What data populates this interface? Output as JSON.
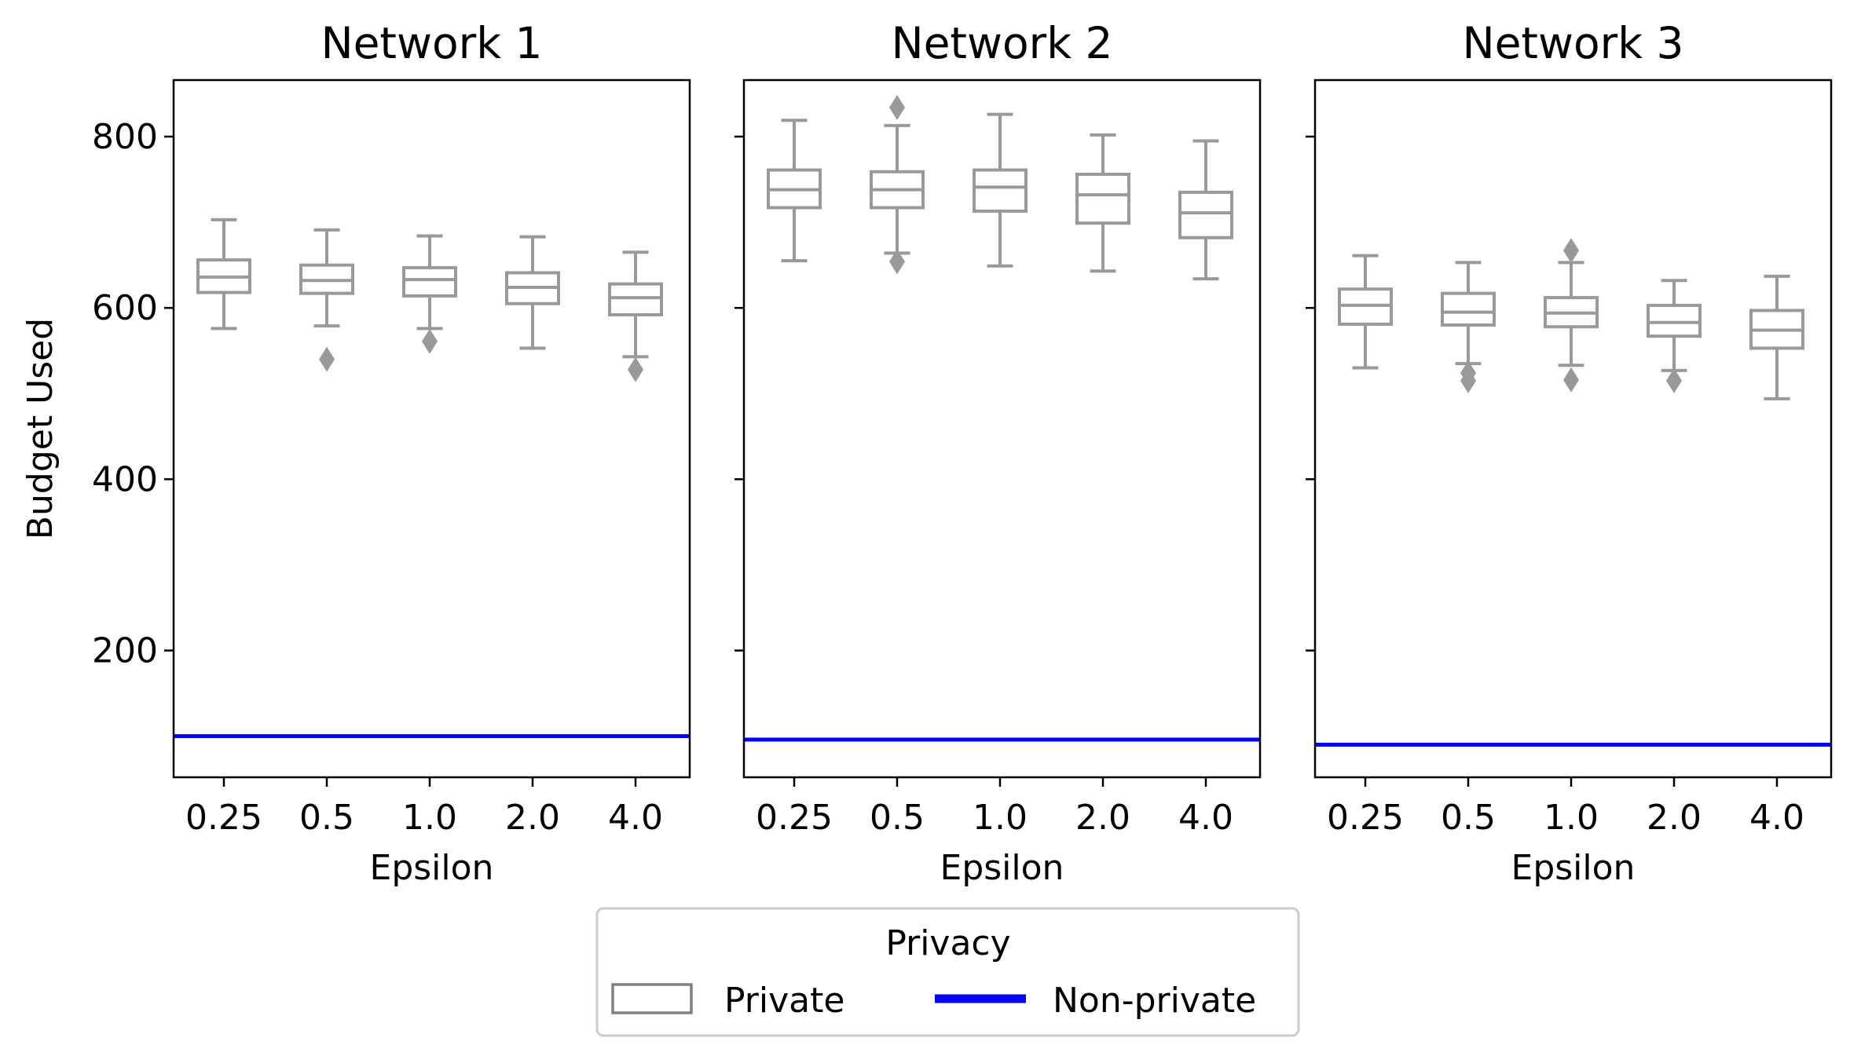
{
  "chart_data": [
    {
      "type": "box",
      "title": "Network 1",
      "xlabel": "Epsilon",
      "ylabel": "Budget Used",
      "ylim": [
        52,
        866
      ],
      "yticks": [
        200,
        400,
        600,
        800
      ],
      "categories": [
        "0.25",
        "0.5",
        "1.0",
        "2.0",
        "4.0"
      ],
      "series": [
        {
          "name": "Private",
          "boxes": [
            {
              "whisker_low": 576,
              "q1": 618,
              "median": 636,
              "q3": 656,
              "whisker_high": 703,
              "outliers": []
            },
            {
              "whisker_low": 579,
              "q1": 617,
              "median": 632,
              "q3": 650,
              "whisker_high": 691,
              "outliers": [
                540
              ]
            },
            {
              "whisker_low": 576,
              "q1": 614,
              "median": 633,
              "q3": 647,
              "whisker_high": 684,
              "outliers": [
                561
              ]
            },
            {
              "whisker_low": 553,
              "q1": 605,
              "median": 624,
              "q3": 641,
              "whisker_high": 683,
              "outliers": []
            },
            {
              "whisker_low": 543,
              "q1": 592,
              "median": 612,
              "q3": 628,
              "whisker_high": 665,
              "outliers": [
                528
              ]
            }
          ]
        },
        {
          "name": "Non-private",
          "hline": 100
        }
      ]
    },
    {
      "type": "box",
      "title": "Network 2",
      "xlabel": "Epsilon",
      "ylabel": "",
      "ylim": [
        52,
        866
      ],
      "yticks": [
        200,
        400,
        600,
        800
      ],
      "categories": [
        "0.25",
        "0.5",
        "1.0",
        "2.0",
        "4.0"
      ],
      "series": [
        {
          "name": "Private",
          "boxes": [
            {
              "whisker_low": 655,
              "q1": 717,
              "median": 738,
              "q3": 761,
              "whisker_high": 819,
              "outliers": []
            },
            {
              "whisker_low": 664,
              "q1": 717,
              "median": 738,
              "q3": 759,
              "whisker_high": 813,
              "outliers": [
                834,
                654
              ]
            },
            {
              "whisker_low": 649,
              "q1": 713,
              "median": 741,
              "q3": 761,
              "whisker_high": 826,
              "outliers": []
            },
            {
              "whisker_low": 643,
              "q1": 699,
              "median": 732,
              "q3": 756,
              "whisker_high": 802,
              "outliers": []
            },
            {
              "whisker_low": 634,
              "q1": 682,
              "median": 711,
              "q3": 735,
              "whisker_high": 795,
              "outliers": []
            }
          ]
        },
        {
          "name": "Non-private",
          "hline": 96
        }
      ]
    },
    {
      "type": "box",
      "title": "Network 3",
      "xlabel": "Epsilon",
      "ylabel": "",
      "ylim": [
        52,
        866
      ],
      "yticks": [
        200,
        400,
        600,
        800
      ],
      "categories": [
        "0.25",
        "0.5",
        "1.0",
        "2.0",
        "4.0"
      ],
      "series": [
        {
          "name": "Private",
          "boxes": [
            {
              "whisker_low": 530,
              "q1": 581,
              "median": 603,
              "q3": 622,
              "whisker_high": 661,
              "outliers": []
            },
            {
              "whisker_low": 535,
              "q1": 580,
              "median": 595,
              "q3": 617,
              "whisker_high": 653,
              "outliers": [
                524,
                515
              ]
            },
            {
              "whisker_low": 533,
              "q1": 578,
              "median": 594,
              "q3": 612,
              "whisker_high": 653,
              "outliers": [
                667,
                516
              ]
            },
            {
              "whisker_low": 527,
              "q1": 567,
              "median": 583,
              "q3": 603,
              "whisker_high": 632,
              "outliers": [
                515
              ]
            },
            {
              "whisker_low": 494,
              "q1": 553,
              "median": 574,
              "q3": 597,
              "whisker_high": 637,
              "outliers": []
            }
          ]
        },
        {
          "name": "Non-private",
          "hline": 90
        }
      ]
    }
  ],
  "legend": {
    "title": "Privacy",
    "placement": "bottom-center",
    "items": [
      {
        "label": "Private",
        "color": "#808080"
      },
      {
        "label": "Non-private",
        "color": "#0000ff"
      }
    ]
  },
  "colors": {
    "box": "#999999",
    "nonprivate": "#0000ff",
    "axes": "#000000"
  }
}
